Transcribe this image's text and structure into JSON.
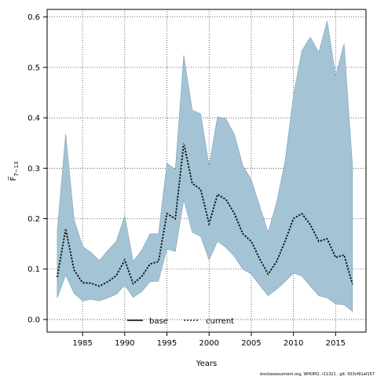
{
  "chart_data": {
    "type": "area",
    "xlabel": "Years",
    "ylabel": "F̅",
    "ylabel_subscript": "7−13",
    "xlim": [
      1980.8,
      2018.6
    ],
    "ylim": [
      -0.025,
      0.615
    ],
    "x_ticks": [
      1985,
      1990,
      1995,
      2000,
      2005,
      2010,
      2015
    ],
    "y_ticks": [
      0.0,
      0.1,
      0.2,
      0.3,
      0.4,
      0.5,
      0.6
    ],
    "x_tick_labels": [
      "1985",
      "1990",
      "1995",
      "2000",
      "2005",
      "2010",
      "2015"
    ],
    "y_tick_labels": [
      "0.0",
      "0.1",
      "0.2",
      "0.3",
      "0.4",
      "0.5",
      "0.6"
    ],
    "grid": true,
    "legend_position": "bottom-center",
    "legend": [
      {
        "name": "base",
        "style": "solid",
        "color": "#000000"
      },
      {
        "name": "current",
        "style": "dotted",
        "color": "#0b2a4a"
      }
    ],
    "band_color": "#a4c4d6",
    "x": [
      1982,
      1983,
      1984,
      1985,
      1986,
      1987,
      1988,
      1989,
      1990,
      1991,
      1992,
      1993,
      1994,
      1995,
      1996,
      1997,
      1998,
      1999,
      2000,
      2001,
      2002,
      2003,
      2004,
      2005,
      2006,
      2007,
      2008,
      2009,
      2010,
      2011,
      2012,
      2013,
      2014,
      2015,
      2016,
      2017
    ],
    "series": [
      {
        "name": "current",
        "values": [
          0.084,
          0.18,
          0.098,
          0.073,
          0.072,
          0.066,
          0.075,
          0.087,
          0.118,
          0.071,
          0.085,
          0.11,
          0.115,
          0.21,
          0.2,
          0.35,
          0.27,
          0.258,
          0.19,
          0.248,
          0.238,
          0.21,
          0.17,
          0.155,
          0.12,
          0.09,
          0.115,
          0.155,
          0.2,
          0.21,
          0.188,
          0.155,
          0.16,
          0.123,
          0.128,
          0.07
        ],
        "lower": [
          0.043,
          0.088,
          0.052,
          0.037,
          0.04,
          0.037,
          0.043,
          0.05,
          0.068,
          0.044,
          0.055,
          0.075,
          0.076,
          0.14,
          0.135,
          0.238,
          0.173,
          0.165,
          0.118,
          0.155,
          0.143,
          0.125,
          0.1,
          0.09,
          0.068,
          0.047,
          0.06,
          0.075,
          0.092,
          0.086,
          0.066,
          0.047,
          0.043,
          0.031,
          0.029,
          0.016
        ],
        "upper": [
          0.175,
          0.368,
          0.198,
          0.145,
          0.133,
          0.117,
          0.137,
          0.155,
          0.205,
          0.115,
          0.137,
          0.17,
          0.17,
          0.31,
          0.298,
          0.524,
          0.415,
          0.408,
          0.305,
          0.402,
          0.398,
          0.367,
          0.305,
          0.277,
          0.225,
          0.173,
          0.232,
          0.313,
          0.445,
          0.533,
          0.56,
          0.53,
          0.592,
          0.483,
          0.547,
          0.305
        ]
      }
    ]
  },
  "footer": {
    "credit": "stockassessment.org, WHOM2, r11321 , git: 503cf91af157"
  }
}
